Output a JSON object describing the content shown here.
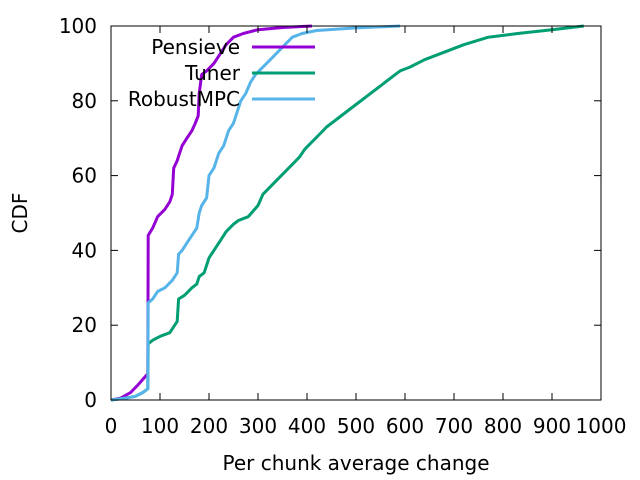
{
  "chart_data": {
    "type": "line",
    "xlabel": "Per chunk average change",
    "ylabel": "CDF",
    "xlim": [
      0,
      1000
    ],
    "ylim": [
      0,
      100
    ],
    "xticks": [
      "0",
      "100",
      "200",
      "300",
      "400",
      "500",
      "600",
      "700",
      "800",
      "900",
      "1000"
    ],
    "yticks": [
      "0",
      "20",
      "40",
      "60",
      "80",
      "100"
    ],
    "grid": false,
    "legend_position": "top-left",
    "series": [
      {
        "name": "Pensieve",
        "color": "#9400D3",
        "points": [
          [
            0,
            0
          ],
          [
            20,
            0.5
          ],
          [
            40,
            2
          ],
          [
            55,
            4
          ],
          [
            65,
            5.5
          ],
          [
            75,
            7
          ],
          [
            76,
            44
          ],
          [
            85,
            46
          ],
          [
            95,
            49
          ],
          [
            110,
            51
          ],
          [
            120,
            53
          ],
          [
            125,
            55
          ],
          [
            128,
            62
          ],
          [
            135,
            64
          ],
          [
            140,
            66
          ],
          [
            145,
            68
          ],
          [
            155,
            70
          ],
          [
            165,
            72
          ],
          [
            172,
            74
          ],
          [
            178,
            76
          ],
          [
            180,
            82
          ],
          [
            185,
            87
          ],
          [
            195,
            88
          ],
          [
            210,
            90
          ],
          [
            225,
            93
          ],
          [
            235,
            95
          ],
          [
            250,
            97
          ],
          [
            270,
            98
          ],
          [
            300,
            99
          ],
          [
            350,
            99.6
          ],
          [
            410,
            100
          ]
        ]
      },
      {
        "name": "Tuner",
        "color": "#009E73",
        "points": [
          [
            0,
            0
          ],
          [
            30,
            0.5
          ],
          [
            50,
            1
          ],
          [
            65,
            2
          ],
          [
            75,
            3
          ],
          [
            76,
            15
          ],
          [
            85,
            16
          ],
          [
            100,
            17
          ],
          [
            120,
            18
          ],
          [
            130,
            20
          ],
          [
            135,
            21
          ],
          [
            138,
            27
          ],
          [
            150,
            28
          ],
          [
            165,
            30
          ],
          [
            175,
            31
          ],
          [
            180,
            33
          ],
          [
            190,
            34
          ],
          [
            195,
            36
          ],
          [
            200,
            38
          ],
          [
            210,
            40
          ],
          [
            225,
            43
          ],
          [
            235,
            45
          ],
          [
            250,
            47
          ],
          [
            260,
            48
          ],
          [
            280,
            49
          ],
          [
            300,
            52
          ],
          [
            310,
            55
          ],
          [
            325,
            57
          ],
          [
            340,
            59
          ],
          [
            355,
            61
          ],
          [
            370,
            63
          ],
          [
            385,
            65
          ],
          [
            395,
            67
          ],
          [
            410,
            69
          ],
          [
            425,
            71
          ],
          [
            440,
            73
          ],
          [
            460,
            75
          ],
          [
            480,
            77
          ],
          [
            500,
            79
          ],
          [
            520,
            81
          ],
          [
            540,
            83
          ],
          [
            560,
            85
          ],
          [
            580,
            87
          ],
          [
            590,
            88
          ],
          [
            610,
            89
          ],
          [
            640,
            91
          ],
          [
            680,
            93
          ],
          [
            720,
            95
          ],
          [
            770,
            97
          ],
          [
            830,
            98
          ],
          [
            900,
            99
          ],
          [
            965,
            100
          ]
        ]
      },
      {
        "name": "RobustMPC",
        "color": "#56B4E9",
        "points": [
          [
            0,
            0
          ],
          [
            30,
            0.5
          ],
          [
            50,
            1
          ],
          [
            65,
            2
          ],
          [
            75,
            3
          ],
          [
            76,
            26
          ],
          [
            85,
            27
          ],
          [
            95,
            29
          ],
          [
            110,
            30
          ],
          [
            125,
            32
          ],
          [
            135,
            34
          ],
          [
            138,
            39
          ],
          [
            145,
            40
          ],
          [
            155,
            42
          ],
          [
            165,
            44
          ],
          [
            175,
            46
          ],
          [
            180,
            50
          ],
          [
            185,
            52
          ],
          [
            195,
            54
          ],
          [
            200,
            60
          ],
          [
            210,
            62
          ],
          [
            220,
            66
          ],
          [
            230,
            68
          ],
          [
            240,
            72
          ],
          [
            250,
            74
          ],
          [
            255,
            76
          ],
          [
            265,
            80
          ],
          [
            275,
            82
          ],
          [
            285,
            85
          ],
          [
            295,
            87
          ],
          [
            310,
            89
          ],
          [
            325,
            91
          ],
          [
            340,
            93
          ],
          [
            355,
            95
          ],
          [
            370,
            97
          ],
          [
            390,
            98
          ],
          [
            420,
            98.8
          ],
          [
            500,
            99.5
          ],
          [
            590,
            100
          ]
        ]
      }
    ]
  }
}
